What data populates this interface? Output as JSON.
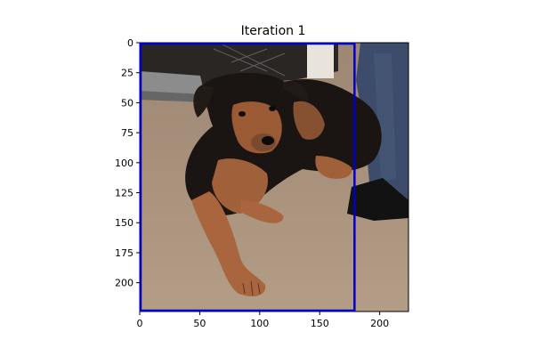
{
  "title": "Iteration 1",
  "image": {
    "description_colors": {
      "carpet": "#a8927c",
      "dog_black": "#1a1412",
      "dog_tan": "#a0603a",
      "jeans": "#3a4a66",
      "shoe": "#111111",
      "wall_dark": "#2a2a2a",
      "grey_object": "#8a8a8a"
    }
  },
  "axes": {
    "x_ticks": [
      "0",
      "50",
      "100",
      "150",
      "200"
    ],
    "y_ticks": [
      "0",
      "25",
      "50",
      "75",
      "100",
      "125",
      "150",
      "175",
      "200"
    ],
    "x_range": [
      0,
      224
    ],
    "y_range": [
      0,
      224
    ]
  },
  "bounding_box": {
    "color": "#0000cc",
    "x0": 0,
    "y0": 0,
    "x1": 179,
    "y1": 224
  }
}
